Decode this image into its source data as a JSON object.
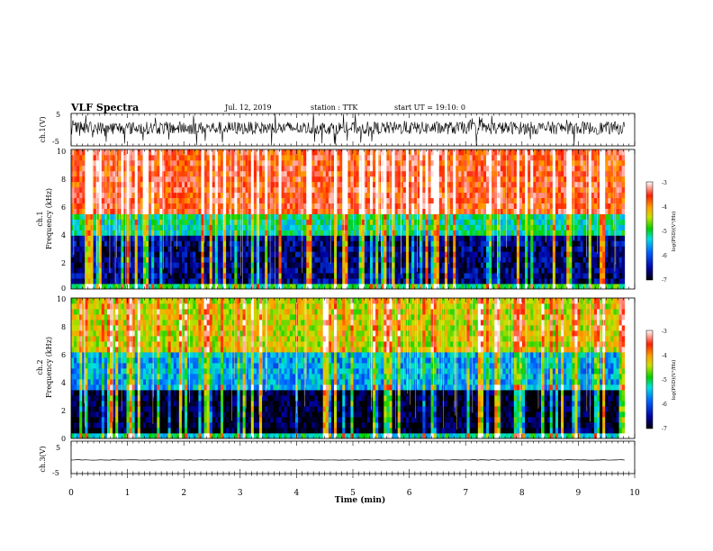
{
  "header": {
    "title": "VLF Spectra",
    "date": "Jul. 12, 2019",
    "station": "station : TTK",
    "start_ut": "start UT = 19:10: 0"
  },
  "panels": {
    "ch1_wave": {
      "ylabel": "ch.1(V)",
      "ticks": [
        "5",
        "-5"
      ]
    },
    "ch1_spec": {
      "ylabel_top": "ch.1",
      "ylabel": "Frequency (kHz)",
      "yticks": [
        "0",
        "2",
        "4",
        "6",
        "8",
        "10"
      ]
    },
    "ch2_spec": {
      "ylabel_top": "ch.2",
      "ylabel": "Frequency (kHz)",
      "yticks": [
        "0",
        "2",
        "4",
        "6",
        "8",
        "10"
      ]
    },
    "ch3_wave": {
      "ylabel": "ch.3(V)",
      "ticks": [
        "5",
        "-5"
      ]
    }
  },
  "colorbar": {
    "label": "log(PSD)(V²/Hz)",
    "ticks": [
      "-3",
      "-4",
      "-5",
      "-6",
      "-7"
    ]
  },
  "xaxis": {
    "label": "Time (min)",
    "ticks": [
      "0",
      "1",
      "2",
      "3",
      "4",
      "5",
      "6",
      "7",
      "8",
      "9",
      "10"
    ]
  },
  "chart_data": [
    {
      "type": "line",
      "name": "ch.1 waveform",
      "ylabel": "ch.1(V)",
      "xlabel": "Time (min)",
      "xlim": [
        0,
        10
      ],
      "ylim": [
        -5,
        5
      ],
      "data_end_min": 9.82,
      "baseline_V": 0.5,
      "noise_range_V": [
        -1.5,
        2.5
      ],
      "spike_range_V": [
        -5,
        5
      ]
    },
    {
      "type": "heatmap",
      "name": "ch.1 spectrogram",
      "ylabel": "Frequency (kHz)",
      "xlabel": "Time (min)",
      "xlim": [
        0,
        10
      ],
      "ylim": [
        0,
        10
      ],
      "data_end_min": 9.82,
      "colorbar_range": [
        -7,
        -3
      ],
      "colorbar_label": "log(PSD)(V²/Hz)",
      "bands": [
        {
          "freq_kHz": [
            0,
            0.4
          ],
          "log_psd": -5.0
        },
        {
          "freq_kHz": [
            0.4,
            3.8
          ],
          "log_psd": -6.6
        },
        {
          "freq_kHz": [
            3.8,
            5.5
          ],
          "log_psd": -5.2
        },
        {
          "freq_kHz": [
            5.5,
            10
          ],
          "log_psd": -3.6
        }
      ]
    },
    {
      "type": "heatmap",
      "name": "ch.2 spectrogram",
      "ylabel": "Frequency (kHz)",
      "xlabel": "Time (min)",
      "xlim": [
        0,
        10
      ],
      "ylim": [
        0,
        10
      ],
      "data_end_min": 9.82,
      "colorbar_range": [
        -7,
        -3
      ],
      "colorbar_label": "log(PSD)(V²/Hz)",
      "bands": [
        {
          "freq_kHz": [
            0,
            0.3
          ],
          "log_psd": -5.2
        },
        {
          "freq_kHz": [
            0.3,
            3.5
          ],
          "log_psd": -6.9
        },
        {
          "freq_kHz": [
            3.5,
            6.0
          ],
          "log_psd": -5.6
        },
        {
          "freq_kHz": [
            6.0,
            10
          ],
          "log_psd": -4.4
        }
      ]
    },
    {
      "type": "line",
      "name": "ch.3 waveform",
      "ylabel": "ch.3(V)",
      "xlabel": "Time (min)",
      "xlim": [
        0,
        10
      ],
      "ylim": [
        -5,
        5
      ],
      "data_end_min": 9.82,
      "baseline_V": -0.8
    }
  ]
}
